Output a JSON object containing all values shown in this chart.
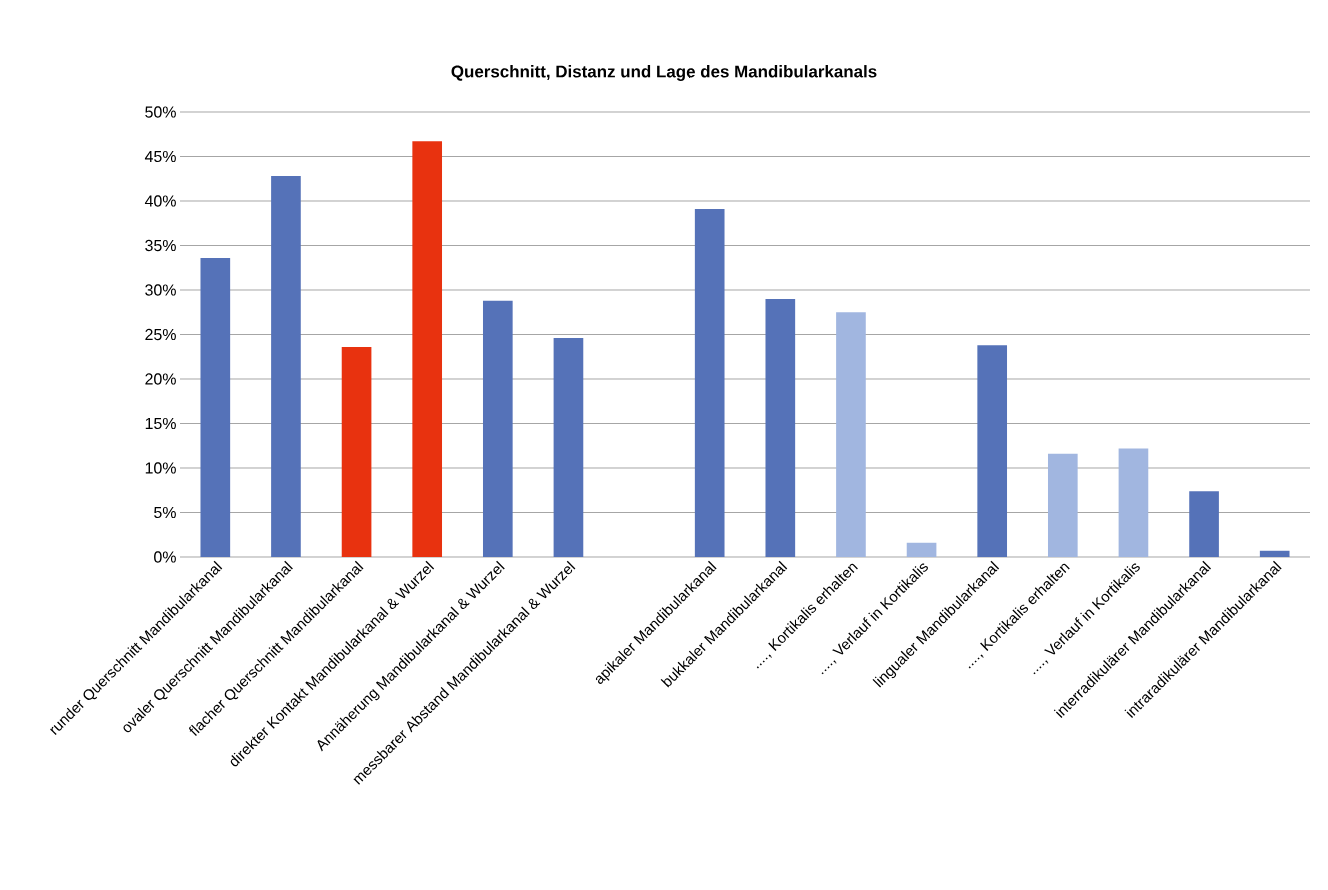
{
  "chart_data": {
    "type": "bar",
    "title": "Querschnitt, Distanz und Lage des Mandibularkanals",
    "categories": [
      "runder Querschnitt Mandibularkanal",
      "ovaler Querschnitt Mandibularkanal",
      "flacher Querschnitt Mandibularkanal",
      "direkter Kontakt Mandibularkanal & Wurzel",
      "Annäherung Mandibularkanal & Wurzel",
      "messbarer Abstand Mandibularkanal & Wurzel",
      null,
      "apikaler Mandibularkanal",
      "bukkaler Mandibularkanal",
      "...., Kortikalis erhalten",
      "...., Verlauf in Kortikalis",
      "lingualer Mandibularkanal",
      "...., Kortikalis erhalten",
      "...., Verlauf in Kortikalis",
      "interradikulärer Mandibularkanal",
      "intraradikulärer Mandibularkanal"
    ],
    "values": [
      33.6,
      42.8,
      23.6,
      46.7,
      28.8,
      24.6,
      null,
      39.1,
      29.0,
      27.5,
      1.6,
      23.8,
      11.6,
      12.2,
      7.4,
      0.7
    ],
    "colors": [
      "#5572b8",
      "#5572b8",
      "#e8320f",
      "#e8320f",
      "#5572b8",
      "#5572b8",
      "#5572b8",
      "#5572b8",
      "#5572b8",
      "#a1b6e0",
      "#a1b6e0",
      "#5572b8",
      "#a1b6e0",
      "#a1b6e0",
      "#5572b8",
      "#5572b8"
    ],
    "ylim": [
      0,
      50
    ],
    "yticks": [
      {
        "value": 0,
        "label": "0%"
      },
      {
        "value": 5,
        "label": "5%"
      },
      {
        "value": 10,
        "label": "10%"
      },
      {
        "value": 15,
        "label": "15%"
      },
      {
        "value": 20,
        "label": "20%"
      },
      {
        "value": 25,
        "label": "25%"
      },
      {
        "value": 30,
        "label": "30%"
      },
      {
        "value": 35,
        "label": "35%"
      },
      {
        "value": 40,
        "label": "40%"
      },
      {
        "value": 45,
        "label": "45%"
      },
      {
        "value": 50,
        "label": "50%"
      }
    ],
    "grid": "y"
  }
}
